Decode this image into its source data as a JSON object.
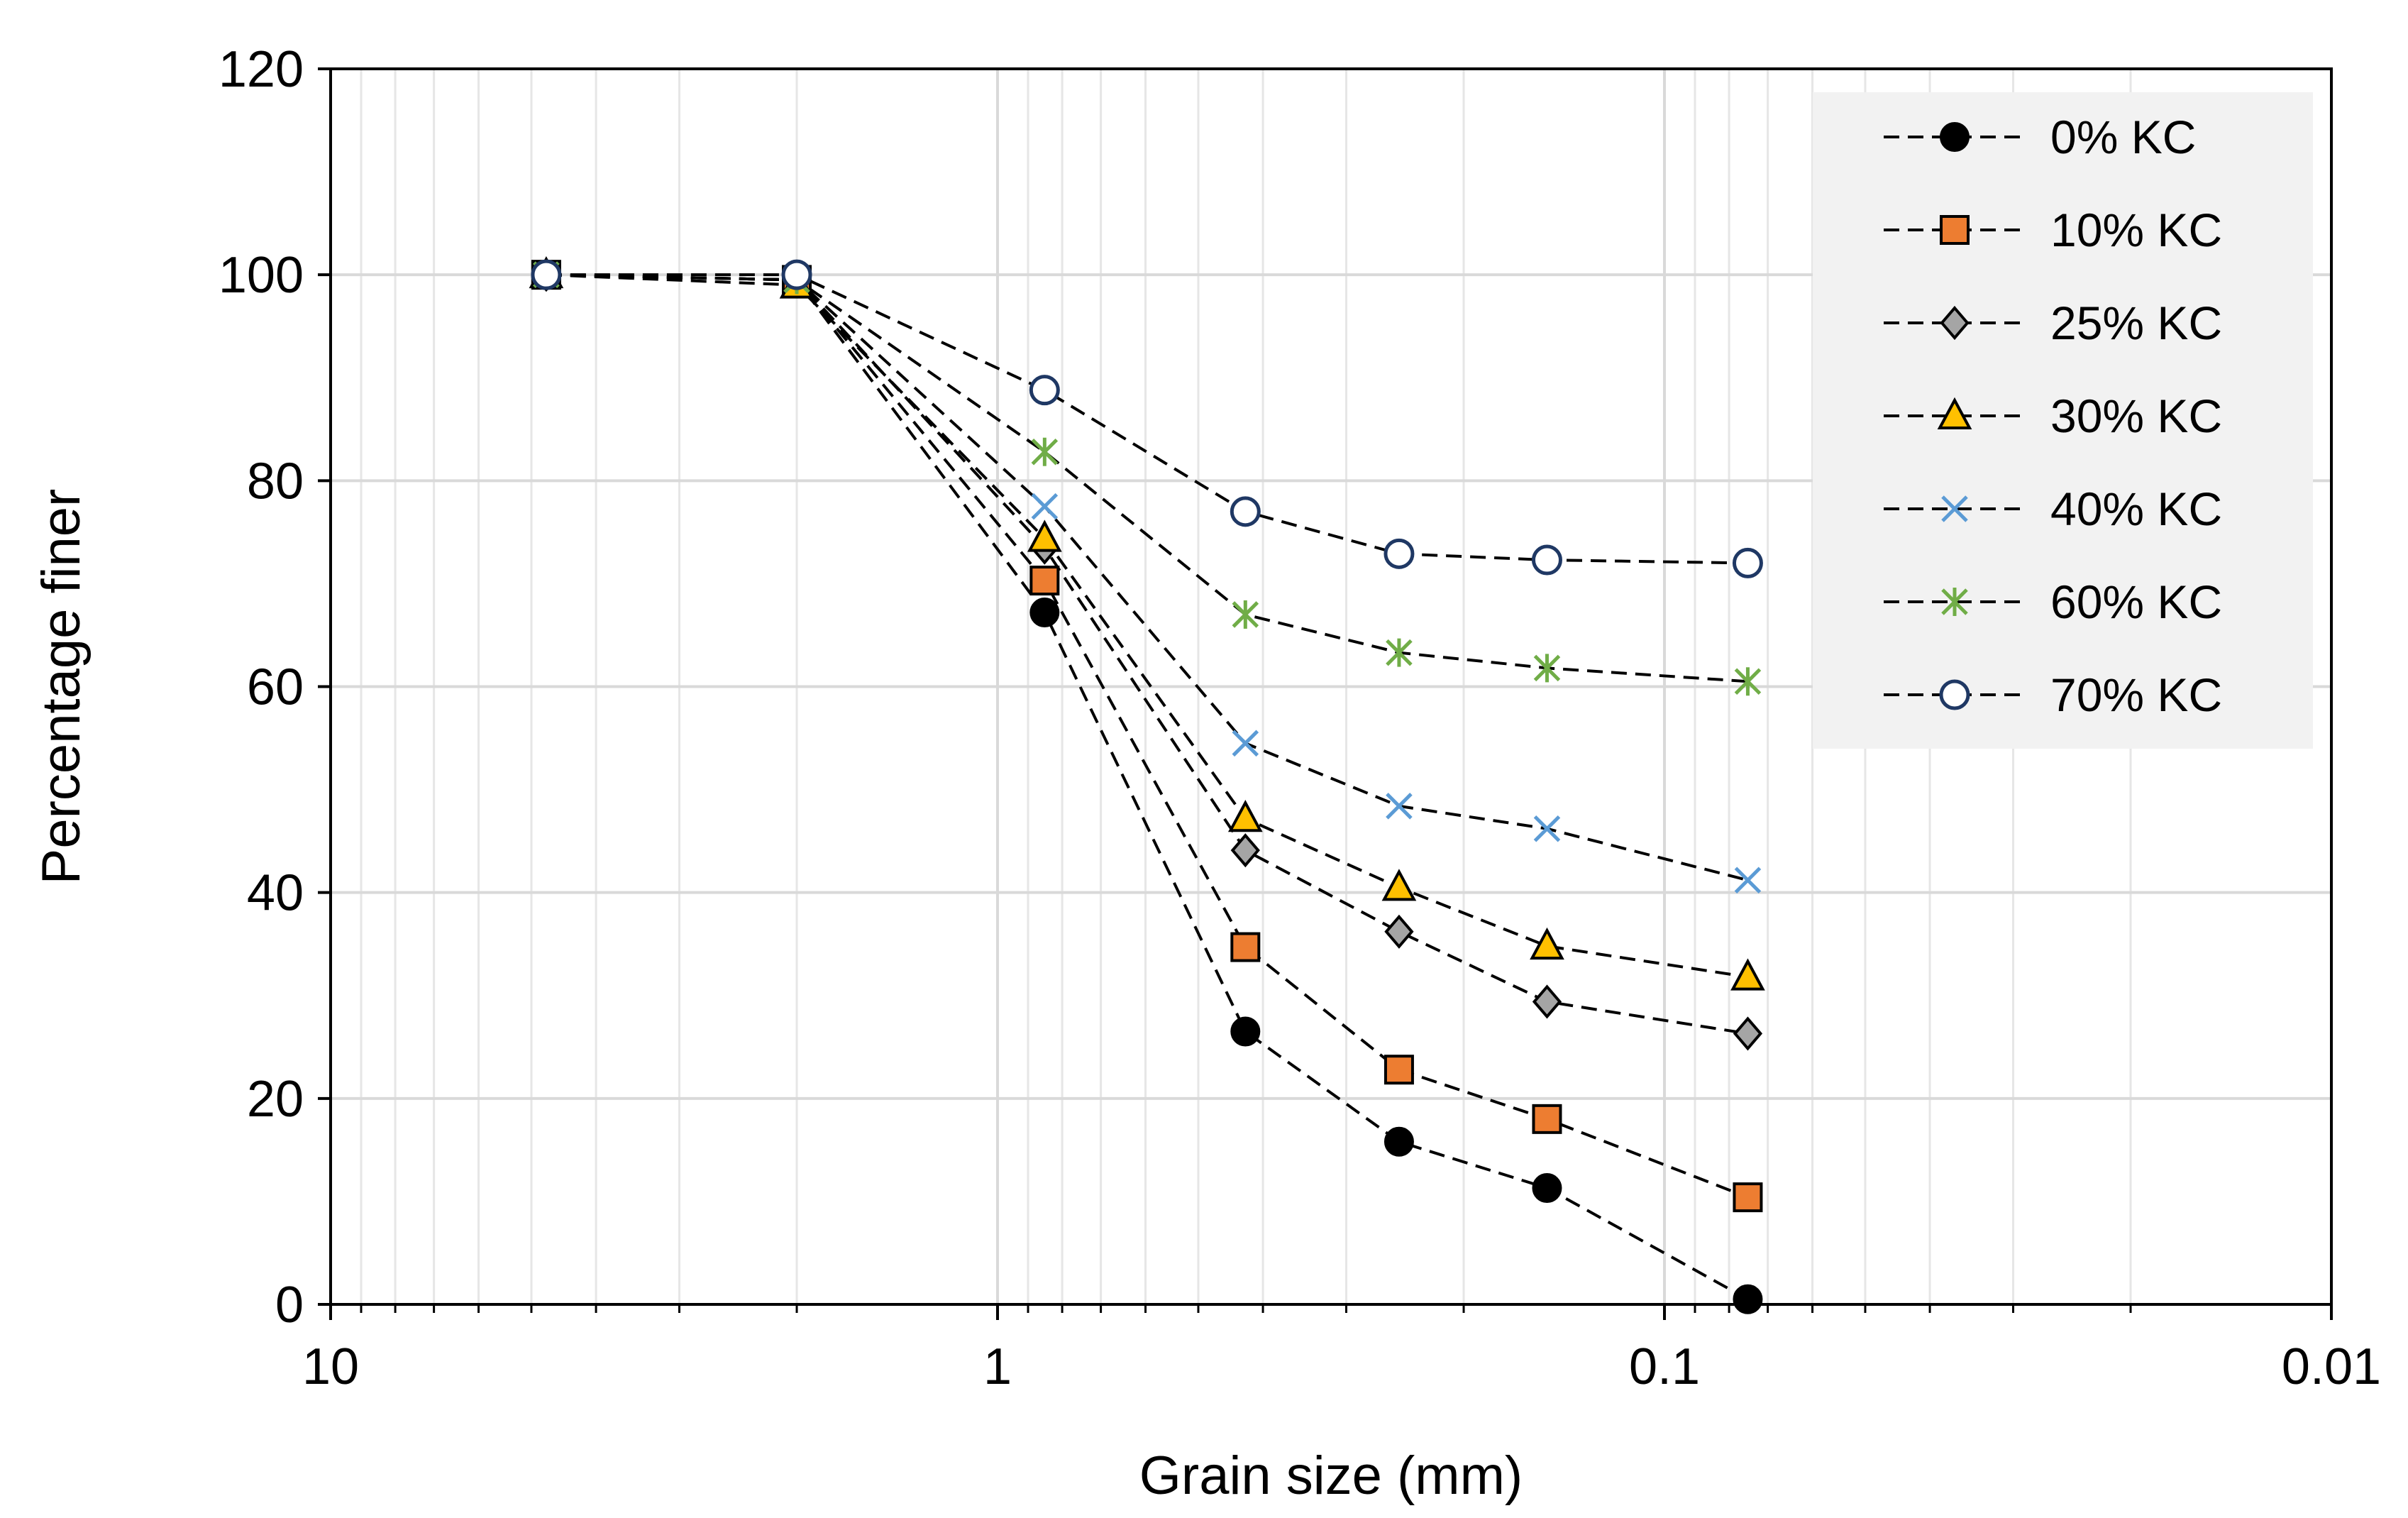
{
  "chart_data": {
    "type": "line",
    "title": "",
    "xlabel": "Grain size (mm)",
    "ylabel": "Percentage finer",
    "xscale": "log",
    "xreversed": true,
    "xlim": [
      10,
      0.01
    ],
    "ylim": [
      0,
      120
    ],
    "yticks": [
      0,
      20,
      40,
      60,
      80,
      100,
      120
    ],
    "xticks": [
      {
        "value": 10,
        "label": "10"
      },
      {
        "value": 1,
        "label": "1"
      },
      {
        "value": 0.1,
        "label": "0.1"
      },
      {
        "value": 0.01,
        "label": "0.01"
      }
    ],
    "grid": true,
    "legend_position": "top-right",
    "x": [
      4.75,
      2.0,
      0.85,
      0.425,
      0.25,
      0.15,
      0.075
    ],
    "series": [
      {
        "name": "0% KC",
        "marker": "circle-filled",
        "color": "#000000",
        "values": [
          100,
          99.5,
          67.2,
          26.5,
          15.8,
          11.3,
          0.5
        ]
      },
      {
        "name": "10% KC",
        "marker": "square",
        "color": "#ED7D31",
        "values": [
          100,
          99.5,
          70.3,
          34.7,
          22.8,
          18.0,
          10.4
        ]
      },
      {
        "name": "25% KC",
        "marker": "diamond",
        "color": "#A5A5A5",
        "values": [
          100,
          99.5,
          73.5,
          44.1,
          36.2,
          29.4,
          26.3
        ]
      },
      {
        "name": "30% KC",
        "marker": "triangle",
        "color": "#FFC000",
        "values": [
          100,
          99.0,
          74.4,
          47.2,
          40.5,
          34.8,
          31.8
        ]
      },
      {
        "name": "40% KC",
        "marker": "x",
        "color": "#5B9BD5",
        "values": [
          100,
          99.5,
          77.5,
          54.5,
          48.4,
          46.2,
          41.2
        ]
      },
      {
        "name": "60% KC",
        "marker": "asterisk",
        "color": "#70AD47",
        "values": [
          100,
          99.5,
          82.8,
          67.0,
          63.3,
          61.8,
          60.5
        ]
      },
      {
        "name": "70% KC",
        "marker": "circle-open",
        "color": "#1F3864",
        "values": [
          100,
          100,
          88.8,
          77.0,
          72.9,
          72.3,
          72.0
        ]
      }
    ]
  }
}
